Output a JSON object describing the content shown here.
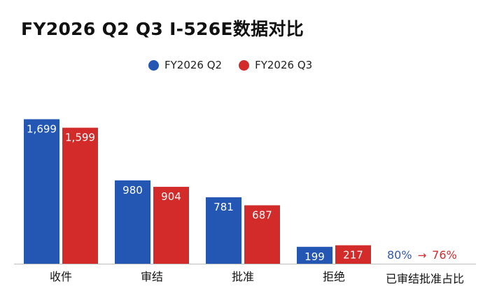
{
  "title": "FY2026 Q2 Q3 I-526E数据对比",
  "legend": [
    {
      "label": "FY2026 Q2",
      "color": "#2457b4"
    },
    {
      "label": "FY2026 Q3",
      "color": "#d32a2a"
    }
  ],
  "chart_data": {
    "type": "bar",
    "title": "FY2026 Q2 Q3 I-526E数据对比",
    "categories": [
      "收件",
      "审结",
      "批准",
      "拒绝"
    ],
    "series": [
      {
        "name": "FY2026 Q2",
        "values": [
          1699,
          980,
          781,
          199
        ],
        "labels": [
          "1,699",
          "980",
          "781",
          "199"
        ],
        "color": "#2457b4"
      },
      {
        "name": "FY2026 Q3",
        "values": [
          1599,
          904,
          687,
          217
        ],
        "labels": [
          "1,599",
          "904",
          "687",
          "217"
        ],
        "color": "#d32a2a"
      }
    ],
    "ylim": [
      0,
      1760
    ],
    "grid": false,
    "legend_position": "top-center"
  },
  "ratio": {
    "label": "已审结批准占比",
    "from": "80%",
    "arrow": "→",
    "to": "76%"
  }
}
